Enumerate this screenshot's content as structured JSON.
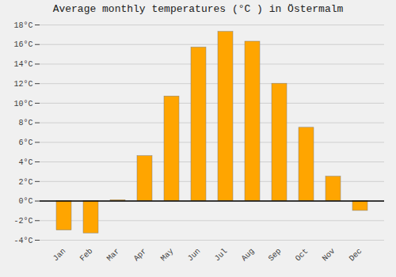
{
  "chart_data": {
    "type": "bar",
    "title": "Average monthly temperatures (°C ) in Östermalm",
    "categories": [
      "Jan",
      "Feb",
      "Mar",
      "Apr",
      "May",
      "Jun",
      "Jul",
      "Aug",
      "Sep",
      "Oct",
      "Nov",
      "Dec"
    ],
    "values": [
      -3.0,
      -3.3,
      0.1,
      4.6,
      10.7,
      15.7,
      17.3,
      16.3,
      12.0,
      7.5,
      2.5,
      -1.0
    ],
    "color": "#FFA500",
    "ylim": [
      -4,
      18
    ],
    "yticks": [
      {
        "value": -4,
        "label": "-4°C"
      },
      {
        "value": -2,
        "label": "-2°C"
      },
      {
        "value": 0,
        "label": "0°C"
      },
      {
        "value": 2,
        "label": "2°C"
      },
      {
        "value": 4,
        "label": "4°C"
      },
      {
        "value": 6,
        "label": "6°C"
      },
      {
        "value": 8,
        "label": "8°C"
      },
      {
        "value": 10,
        "label": "10°C"
      },
      {
        "value": 12,
        "label": "12°C"
      },
      {
        "value": 14,
        "label": "14°C"
      },
      {
        "value": 16,
        "label": "16°C"
      },
      {
        "value": 18,
        "label": "18°C"
      }
    ],
    "grid": true
  }
}
